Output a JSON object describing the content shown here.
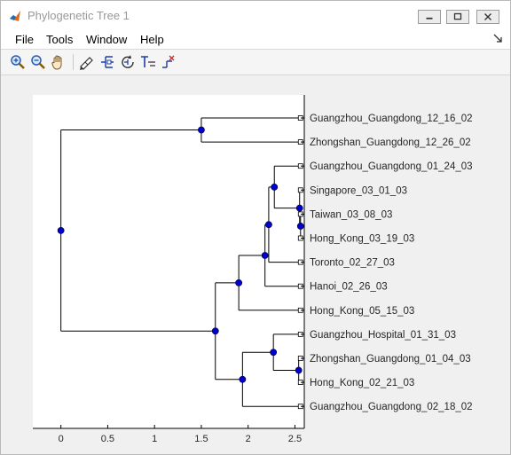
{
  "window": {
    "title": "Phylogenetic Tree 1",
    "controls": [
      "minimize",
      "maximize",
      "close"
    ]
  },
  "menubar": {
    "items": [
      "File",
      "Tools",
      "Window",
      "Help"
    ],
    "pin_icon": "pin-icon"
  },
  "toolbar": {
    "buttons": [
      {
        "name": "zoom-in-icon"
      },
      {
        "name": "zoom-out-icon"
      },
      {
        "name": "pan-hand-icon"
      },
      {
        "name": "inspect-node-icon"
      },
      {
        "name": "collapse-expand-icon"
      },
      {
        "name": "rotate-branch-icon"
      },
      {
        "name": "rename-label-icon"
      },
      {
        "name": "prune-icon"
      }
    ]
  },
  "colors": {
    "node_fill": "#0000cc",
    "branch": "#000000",
    "plot_bg": "#ffffff",
    "figure_bg": "#f0f0f0"
  },
  "chart_data": {
    "type": "tree",
    "xlim": [
      -0.3,
      2.6
    ],
    "x_ticks": [
      0,
      0.5,
      1,
      1.5,
      2,
      2.5
    ],
    "x_tick_labels": [
      "0",
      "0.5",
      "1",
      "1.5",
      "2",
      "2.5"
    ],
    "leaves": [
      {
        "label": "Guangzhou_Guangdong_12_16_02",
        "x": 2.56
      },
      {
        "label": "Zhongshan_Guangdong_12_26_02",
        "x": 2.56
      },
      {
        "label": "Guangzhou_Guangdong_01_24_03",
        "x": 2.56
      },
      {
        "label": "Singapore_03_01_03",
        "x": 2.56
      },
      {
        "label": "Taiwan_03_08_03",
        "x": 2.56
      },
      {
        "label": "Hong_Kong_03_19_03",
        "x": 2.56
      },
      {
        "label": "Toronto_02_27_03",
        "x": 2.56
      },
      {
        "label": "Hanoi_02_26_03",
        "x": 2.56
      },
      {
        "label": "Hong_Kong_05_15_03",
        "x": 2.56
      },
      {
        "label": "Guangzhou_Hospital_01_31_03",
        "x": 2.56
      },
      {
        "label": "Zhongshan_Guangdong_01_04_03",
        "x": 2.56
      },
      {
        "label": "Hong_Kong_02_21_03",
        "x": 2.56
      },
      {
        "label": "Guangzhou_Guangdong_02_18_02",
        "x": 2.56
      }
    ],
    "internal_nodes": [
      {
        "id": "root",
        "x": 0.0,
        "children": [
          "n1",
          "n2"
        ]
      },
      {
        "id": "n1",
        "x": 1.5,
        "children": [
          "L0",
          "L1"
        ]
      },
      {
        "id": "n2",
        "x": 1.65,
        "children": [
          "n3",
          "n9"
        ]
      },
      {
        "id": "n3",
        "x": 1.9,
        "children": [
          "n4",
          "L8"
        ]
      },
      {
        "id": "n4",
        "x": 2.18,
        "children": [
          "n5",
          "L7"
        ]
      },
      {
        "id": "n5",
        "x": 2.22,
        "children": [
          "n6",
          "L6"
        ]
      },
      {
        "id": "n6",
        "x": 2.28,
        "children": [
          "L2",
          "n7"
        ]
      },
      {
        "id": "n7",
        "x": 2.55,
        "children": [
          "L3",
          "n8"
        ]
      },
      {
        "id": "n8",
        "x": 2.56,
        "children": [
          "L4",
          "L5"
        ]
      },
      {
        "id": "n9",
        "x": 1.94,
        "children": [
          "n10",
          "L12"
        ]
      },
      {
        "id": "n10",
        "x": 2.27,
        "children": [
          "L9",
          "n11"
        ]
      },
      {
        "id": "n11",
        "x": 2.54,
        "children": [
          "L10",
          "L11"
        ]
      }
    ]
  }
}
